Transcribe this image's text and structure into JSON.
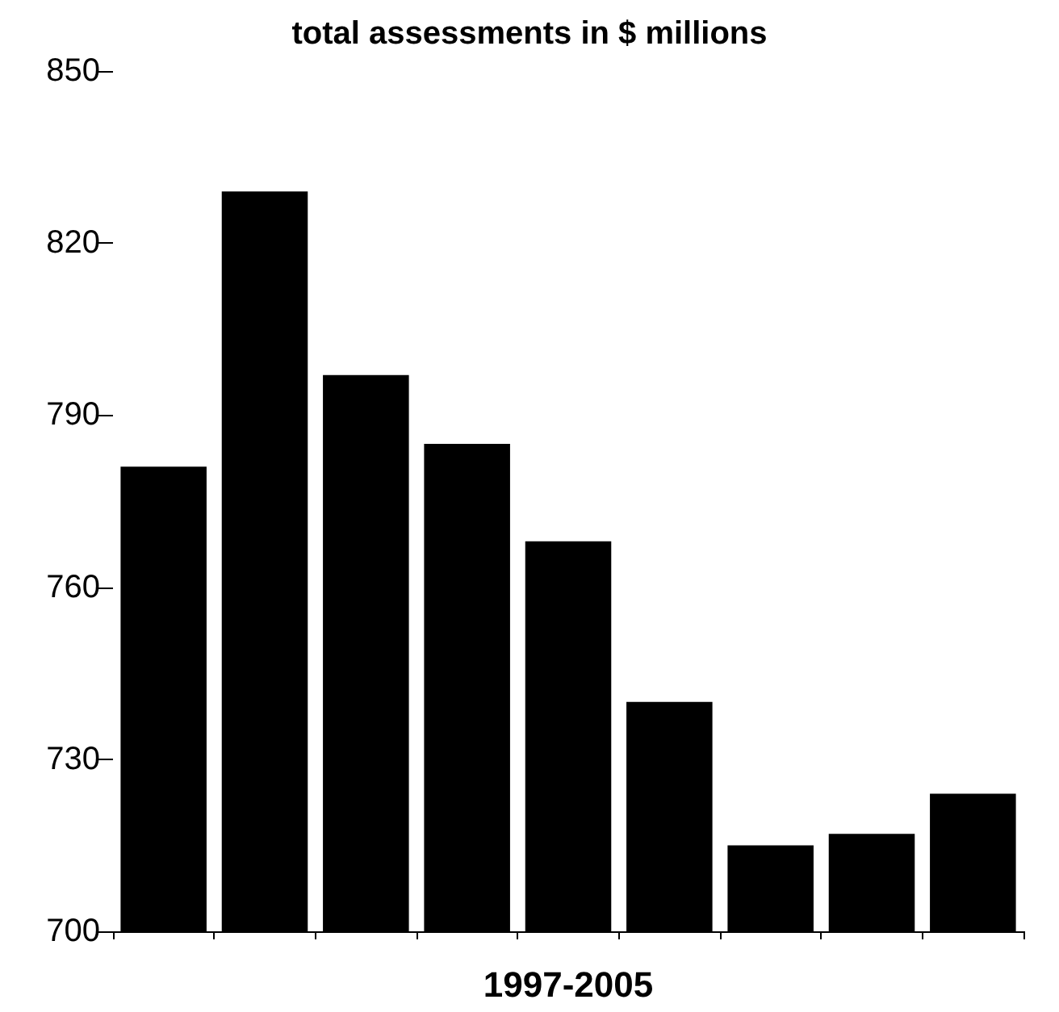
{
  "chart_data": {
    "type": "bar",
    "title": "total assessments in $ millions",
    "xlabel": "1997-2005",
    "categories": [
      null,
      null,
      null,
      null,
      null,
      null,
      null,
      null,
      null
    ],
    "values": [
      781,
      829,
      797,
      785,
      768,
      740,
      715,
      717,
      724
    ],
    "color": "#000000",
    "ylim": [
      700,
      850
    ],
    "yticks": [
      700,
      730,
      760,
      790,
      820,
      850
    ],
    "grid": false
  }
}
